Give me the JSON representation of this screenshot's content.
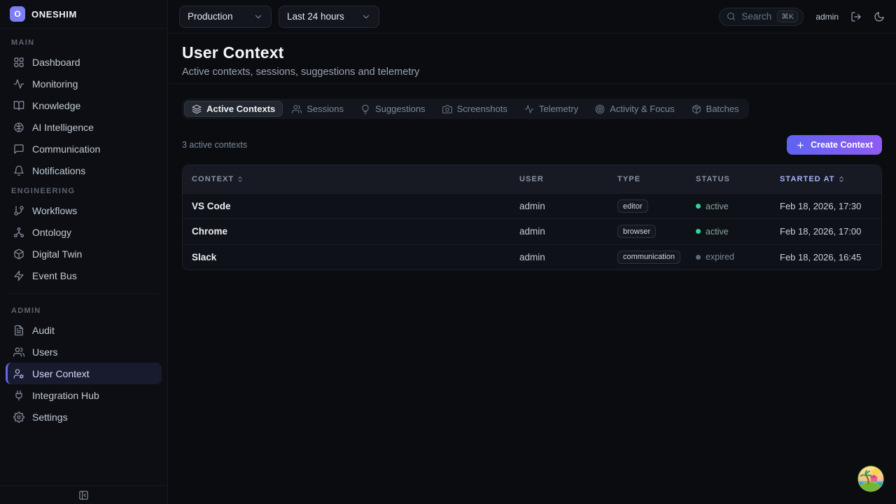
{
  "brand": {
    "logo_letter": "O",
    "name": "ONESHIM"
  },
  "sidebar": {
    "sections": [
      {
        "label": "MAIN",
        "items": [
          {
            "label": "Dashboard",
            "icon": "dashboard-icon"
          },
          {
            "label": "Monitoring",
            "icon": "monitoring-icon"
          },
          {
            "label": "Knowledge",
            "icon": "knowledge-icon"
          },
          {
            "label": "AI Intelligence",
            "icon": "ai-intelligence-icon"
          },
          {
            "label": "Communication",
            "icon": "communication-icon"
          },
          {
            "label": "Notifications",
            "icon": "notifications-icon"
          }
        ]
      },
      {
        "label": "ENGINEERING",
        "items": [
          {
            "label": "Workflows",
            "icon": "workflows-icon"
          },
          {
            "label": "Ontology",
            "icon": "ontology-icon"
          },
          {
            "label": "Digital Twin",
            "icon": "digital-twin-icon"
          },
          {
            "label": "Event Bus",
            "icon": "event-bus-icon"
          }
        ]
      },
      {
        "label": "ADMIN",
        "divider_before": true,
        "items": [
          {
            "label": "Audit",
            "icon": "audit-icon"
          },
          {
            "label": "Users",
            "icon": "users-icon"
          },
          {
            "label": "User Context",
            "icon": "user-context-icon",
            "active": true
          },
          {
            "label": "Integration Hub",
            "icon": "integration-hub-icon"
          },
          {
            "label": "Settings",
            "icon": "settings-icon"
          }
        ]
      }
    ]
  },
  "topbar": {
    "environment_value": "Production",
    "time_range_value": "Last 24 hours",
    "search_placeholder": "Search",
    "search_shortcut": "⌘K",
    "username": "admin"
  },
  "page": {
    "title": "User Context",
    "subtitle": "Active contexts, sessions, suggestions and telemetry"
  },
  "tabs": [
    {
      "label": "Active Contexts",
      "icon": "layers-icon",
      "active": true
    },
    {
      "label": "Sessions",
      "icon": "sessions-icon",
      "active": false
    },
    {
      "label": "Suggestions",
      "icon": "lightbulb-icon",
      "active": false
    },
    {
      "label": "Screenshots",
      "icon": "camera-icon",
      "active": false
    },
    {
      "label": "Telemetry",
      "icon": "pulse-icon",
      "active": false
    },
    {
      "label": "Activity & Focus",
      "icon": "disc-icon",
      "active": false
    },
    {
      "label": "Batches",
      "icon": "package-icon",
      "active": false
    }
  ],
  "toolbar": {
    "count_label": "3 active contexts",
    "create_label": "Create Context"
  },
  "table": {
    "columns": [
      {
        "label": "CONTEXT",
        "sortable": true,
        "sorted": false
      },
      {
        "label": "USER",
        "sortable": false,
        "sorted": false
      },
      {
        "label": "TYPE",
        "sortable": false,
        "sorted": false
      },
      {
        "label": "STATUS",
        "sortable": false,
        "sorted": false
      },
      {
        "label": "STARTED AT",
        "sortable": true,
        "sorted": true
      }
    ],
    "rows": [
      {
        "context": "VS Code",
        "user": "admin",
        "type": "editor",
        "status": "active",
        "started_at": "Feb 18, 2026, 17:30"
      },
      {
        "context": "Chrome",
        "user": "admin",
        "type": "browser",
        "status": "active",
        "started_at": "Feb 18, 2026, 17:00"
      },
      {
        "context": "Slack",
        "user": "admin",
        "type": "communication",
        "status": "expired",
        "started_at": "Feb 18, 2026, 16:45"
      }
    ]
  },
  "colors": {
    "accent": "#6366f1",
    "accent_gradient_end": "#8b5cf6",
    "logo": "#7c80f2",
    "status_active_dot": "#34d399",
    "status_expired_dot": "#5d6a7d",
    "sorted_header": "#a5b4fc"
  }
}
